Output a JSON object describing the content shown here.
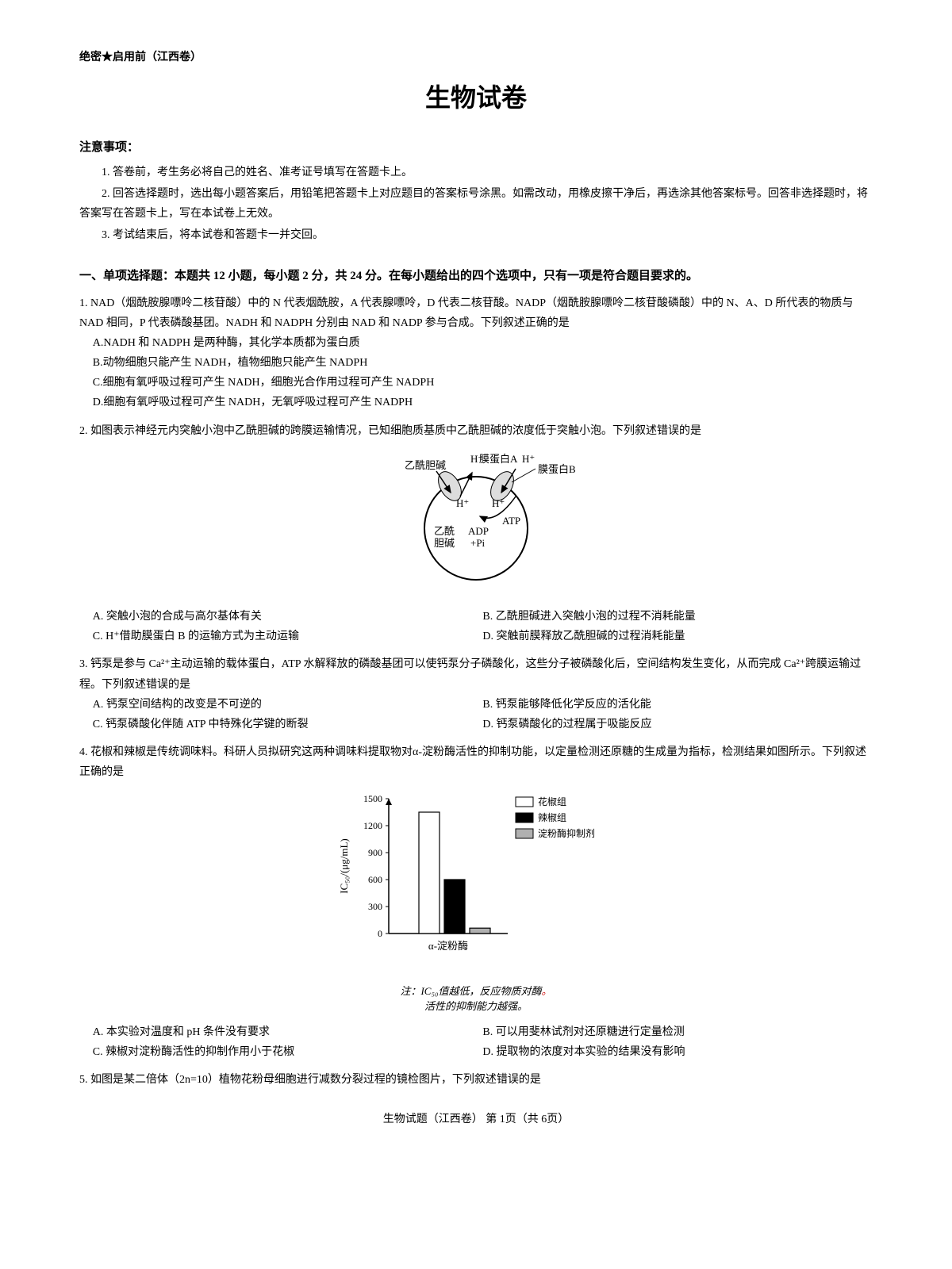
{
  "header": {
    "label": "绝密★启用前（江西卷）"
  },
  "title": "生物试卷",
  "notice": {
    "heading": "注意事项：",
    "items": [
      "1. 答卷前，考生务必将自己的姓名、准考证号填写在答题卡上。",
      "2. 回答选择题时，选出每小题答案后，用铅笔把答题卡上对应题目的答案标号涂黑。如需改动，用橡皮擦干净后，再选涂其他答案标号。回答非选择题时，将答案写在答题卡上，写在本试卷上无效。",
      "3. 考试结束后，将本试卷和答题卡一并交回。"
    ]
  },
  "section1": {
    "title": "一、单项选择题：本题共 12 小题，每小题 2 分，共 24 分。在每小题给出的四个选项中，只有一项是符合题目要求的。"
  },
  "q1": {
    "stem": "1. NAD（烟酰胺腺嘌呤二核苷酸）中的 N 代表烟酰胺，A 代表腺嘌呤，D 代表二核苷酸。NADP（烟酰胺腺嘌呤二核苷酸磷酸）中的 N、A、D 所代表的物质与 NAD 相同，P 代表磷酸基团。NADH 和 NADPH 分别由 NAD 和 NADP 参与合成。下列叙述正确的是",
    "A": "A.NADH 和 NADPH 是两种酶，其化学本质都为蛋白质",
    "B": "B.动物细胞只能产生 NADH，植物细胞只能产生 NADPH",
    "C": "C.细胞有氧呼吸过程可产生 NADH，细胞光合作用过程可产生 NADPH",
    "D": "D.细胞有氧呼吸过程可产生 NADH，无氧呼吸过程可产生 NADPH"
  },
  "q2": {
    "stem": "2. 如图表示神经元内突触小泡中乙酰胆碱的跨膜运输情况，已知细胞质基质中乙酰胆碱的浓度低于突触小泡。下列叙述错误的是",
    "A": "A. 突触小泡的合成与高尔基体有关",
    "B": "B. 乙酰胆碱进入突触小泡的过程不消耗能量",
    "C": "C. H⁺借助膜蛋白 B 的运输方式为主动运输",
    "D": "D. 突触前膜释放乙酰胆碱的过程消耗能量",
    "diagram": {
      "labels": {
        "ach_out": "乙酰胆碱",
        "ach_in": "乙酰\n胆碱",
        "h_plus": "H⁺",
        "protA": "膜蛋白A",
        "protB": "膜蛋白B",
        "adp": "ADP\n+Pi",
        "atp": "ATP"
      },
      "circle_stroke": "#000000",
      "circle_fill": "none"
    }
  },
  "q3": {
    "stem": "3. 钙泵是参与 Ca²⁺主动运输的载体蛋白，ATP 水解释放的磷酸基团可以使钙泵分子磷酸化，这些分子被磷酸化后，空间结构发生变化，从而完成 Ca²⁺跨膜运输过程。下列叙述错误的是",
    "A": "A. 钙泵空间结构的改变是不可逆的",
    "B": "B. 钙泵能够降低化学反应的活化能",
    "C": "C. 钙泵磷酸化伴随 ATP 中特殊化学键的断裂",
    "D": "D. 钙泵磷酸化的过程属于吸能反应"
  },
  "q4": {
    "stem": "4. 花椒和辣椒是传统调味料。科研人员拟研究这两种调味料提取物对α-淀粉酶活性的抑制功能，以定量检测还原糖的生成量为指标，检测结果如图所示。下列叙述正确的是",
    "A": "A. 本实验对温度和 pH 条件没有要求",
    "B": "B. 可以用斐林试剂对还原糖进行定量检测",
    "C": "C. 辣椒对淀粉酶活性的抑制作用小于花椒",
    "D": "D. 提取物的浓度对本实验的结果没有影响",
    "chart": {
      "type": "bar",
      "ylabel": "IC₅₀/(μg/mL)",
      "xlabel": "α-淀粉酶",
      "ylim": [
        0,
        1500
      ],
      "yticks": [
        0,
        300,
        600,
        900,
        1200,
        1500
      ],
      "legend": [
        "花椒组",
        "辣椒组",
        "淀粉酶抑制剂"
      ],
      "values": [
        1350,
        600,
        60
      ],
      "colors": [
        "#ffffff",
        "#000000",
        "#b0b0b0"
      ],
      "border": "#000000",
      "bg": "#ffffff",
      "caption_l1": "注：IC₅₀值越低，反应物质对酶",
      "caption_l2": "活性的抑制能力越强。"
    }
  },
  "q5": {
    "stem": "5. 如图是某二倍体（2n=10）植物花粉母细胞进行减数分裂过程的镜检图片，下列叙述错误的是"
  },
  "footer": "生物试题（江西卷）  第 1页（共 6页）"
}
